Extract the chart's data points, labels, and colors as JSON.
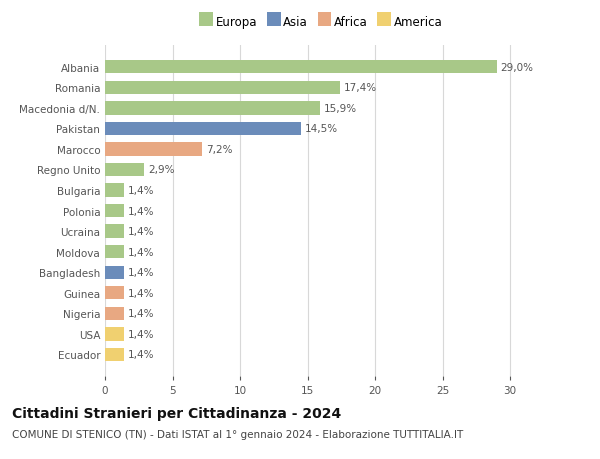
{
  "countries": [
    "Albania",
    "Romania",
    "Macedonia d/N.",
    "Pakistan",
    "Marocco",
    "Regno Unito",
    "Bulgaria",
    "Polonia",
    "Ucraina",
    "Moldova",
    "Bangladesh",
    "Guinea",
    "Nigeria",
    "USA",
    "Ecuador"
  ],
  "values": [
    29.0,
    17.4,
    15.9,
    14.5,
    7.2,
    2.9,
    1.4,
    1.4,
    1.4,
    1.4,
    1.4,
    1.4,
    1.4,
    1.4,
    1.4
  ],
  "labels": [
    "29,0%",
    "17,4%",
    "15,9%",
    "14,5%",
    "7,2%",
    "2,9%",
    "1,4%",
    "1,4%",
    "1,4%",
    "1,4%",
    "1,4%",
    "1,4%",
    "1,4%",
    "1,4%",
    "1,4%"
  ],
  "continents": [
    "Europa",
    "Europa",
    "Europa",
    "Asia",
    "Africa",
    "Europa",
    "Europa",
    "Europa",
    "Europa",
    "Europa",
    "Asia",
    "Africa",
    "Africa",
    "America",
    "America"
  ],
  "continent_colors": {
    "Europa": "#a8c888",
    "Asia": "#6b8cba",
    "Africa": "#e8a882",
    "America": "#f0d070"
  },
  "legend_order": [
    "Europa",
    "Asia",
    "Africa",
    "America"
  ],
  "title": "Cittadini Stranieri per Cittadinanza - 2024",
  "subtitle": "COMUNE DI STENICO (TN) - Dati ISTAT al 1° gennaio 2024 - Elaborazione TUTTITALIA.IT",
  "xlim": [
    0,
    32
  ],
  "xticks": [
    0,
    5,
    10,
    15,
    20,
    25,
    30
  ],
  "background_color": "#ffffff",
  "grid_color": "#d8d8d8",
  "bar_height": 0.65,
  "title_fontsize": 10,
  "subtitle_fontsize": 7.5,
  "label_fontsize": 7.5,
  "tick_fontsize": 7.5,
  "legend_fontsize": 8.5
}
